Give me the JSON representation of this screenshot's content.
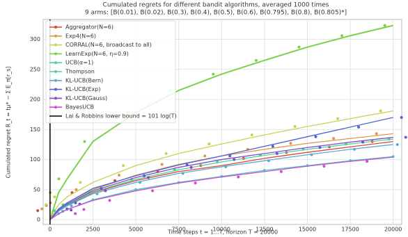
{
  "chart_data": {
    "type": "line",
    "title": "Cumulated regrets for different bandit algorithms, averaged 1000 times",
    "subtitle": "9 arms: [B(0.01), B(0.02), B(0.3), B(0.4), B(0.5), B(0.6), B(0.795), B(0.8), B(0.805)*]",
    "x_label": "Time steps t = 1...T, horizon T = 20000",
    "y_label": "Cumulated regret R_t = tμ* − Σ E_π[r_s]",
    "x": [
      0,
      500,
      1000,
      2500,
      5000,
      7500,
      10000,
      12500,
      15000,
      17500,
      20000
    ],
    "series": [
      {
        "name": "Aggregator(N=6)",
        "color": "#d8463a",
        "values": [
          0,
          15,
          24,
          45,
          65,
          80,
          90,
          102,
          112,
          121,
          130
        ]
      },
      {
        "name": "Exp4(N=6)",
        "color": "#e0954e",
        "values": [
          0,
          18,
          28,
          50,
          74,
          92,
          106,
          117,
          127,
          135,
          143
        ]
      },
      {
        "name": "CORRAL(N=6, broadcast to all)",
        "color": "#c9d24c",
        "values": [
          0,
          25,
          38,
          62,
          90,
          110,
          126,
          141,
          155,
          168,
          181
        ]
      },
      {
        "name": "LearnExp(N=6, η=0.9)",
        "color": "#7dd04c",
        "values": [
          0,
          45,
          68,
          130,
          178,
          215,
          242,
          265,
          287,
          306,
          323
        ]
      },
      {
        "name": "UCB(α=1)",
        "color": "#4fd48e",
        "values": [
          0,
          15,
          25,
          46,
          67,
          83,
          96,
          107,
          117,
          126,
          134
        ]
      },
      {
        "name": "Thompson",
        "color": "#4ccabf",
        "values": [
          0,
          10,
          17,
          33,
          50,
          62,
          72,
          82,
          90,
          98,
          105
        ]
      },
      {
        "name": "KL-UCB(Bern)",
        "color": "#5aaad8",
        "values": [
          0,
          14,
          23,
          43,
          62,
          77,
          88,
          98,
          108,
          117,
          125
        ]
      },
      {
        "name": "KL-UCB(Exp)",
        "color": "#4a64d2",
        "values": [
          0,
          18,
          28,
          52,
          73,
          91,
          106,
          122,
          138,
          154,
          170
        ]
      },
      {
        "name": "KL-UCB(Gauss)",
        "color": "#7c4cd2",
        "values": [
          0,
          16,
          26,
          48,
          70,
          87,
          100,
          110,
          120,
          129,
          137
        ]
      },
      {
        "name": "BayesUCB",
        "color": "#d04cd0",
        "values": [
          0,
          10,
          17,
          32,
          48,
          61,
          71,
          80,
          89,
          97,
          104
        ]
      }
    ],
    "bound": {
      "name": "Lai & Robbins lower bound = 101 log(T)",
      "color": "#000000",
      "x": 0
    },
    "xlim": [
      -400,
      20500
    ],
    "ylim": [
      -8,
      333
    ],
    "xticks": [
      0,
      2500,
      5000,
      7500,
      10000,
      12500,
      15000,
      17500,
      20000
    ],
    "yticks": [
      0,
      50,
      100,
      150,
      200,
      250,
      300
    ],
    "grid": true,
    "legend": "upper left"
  }
}
